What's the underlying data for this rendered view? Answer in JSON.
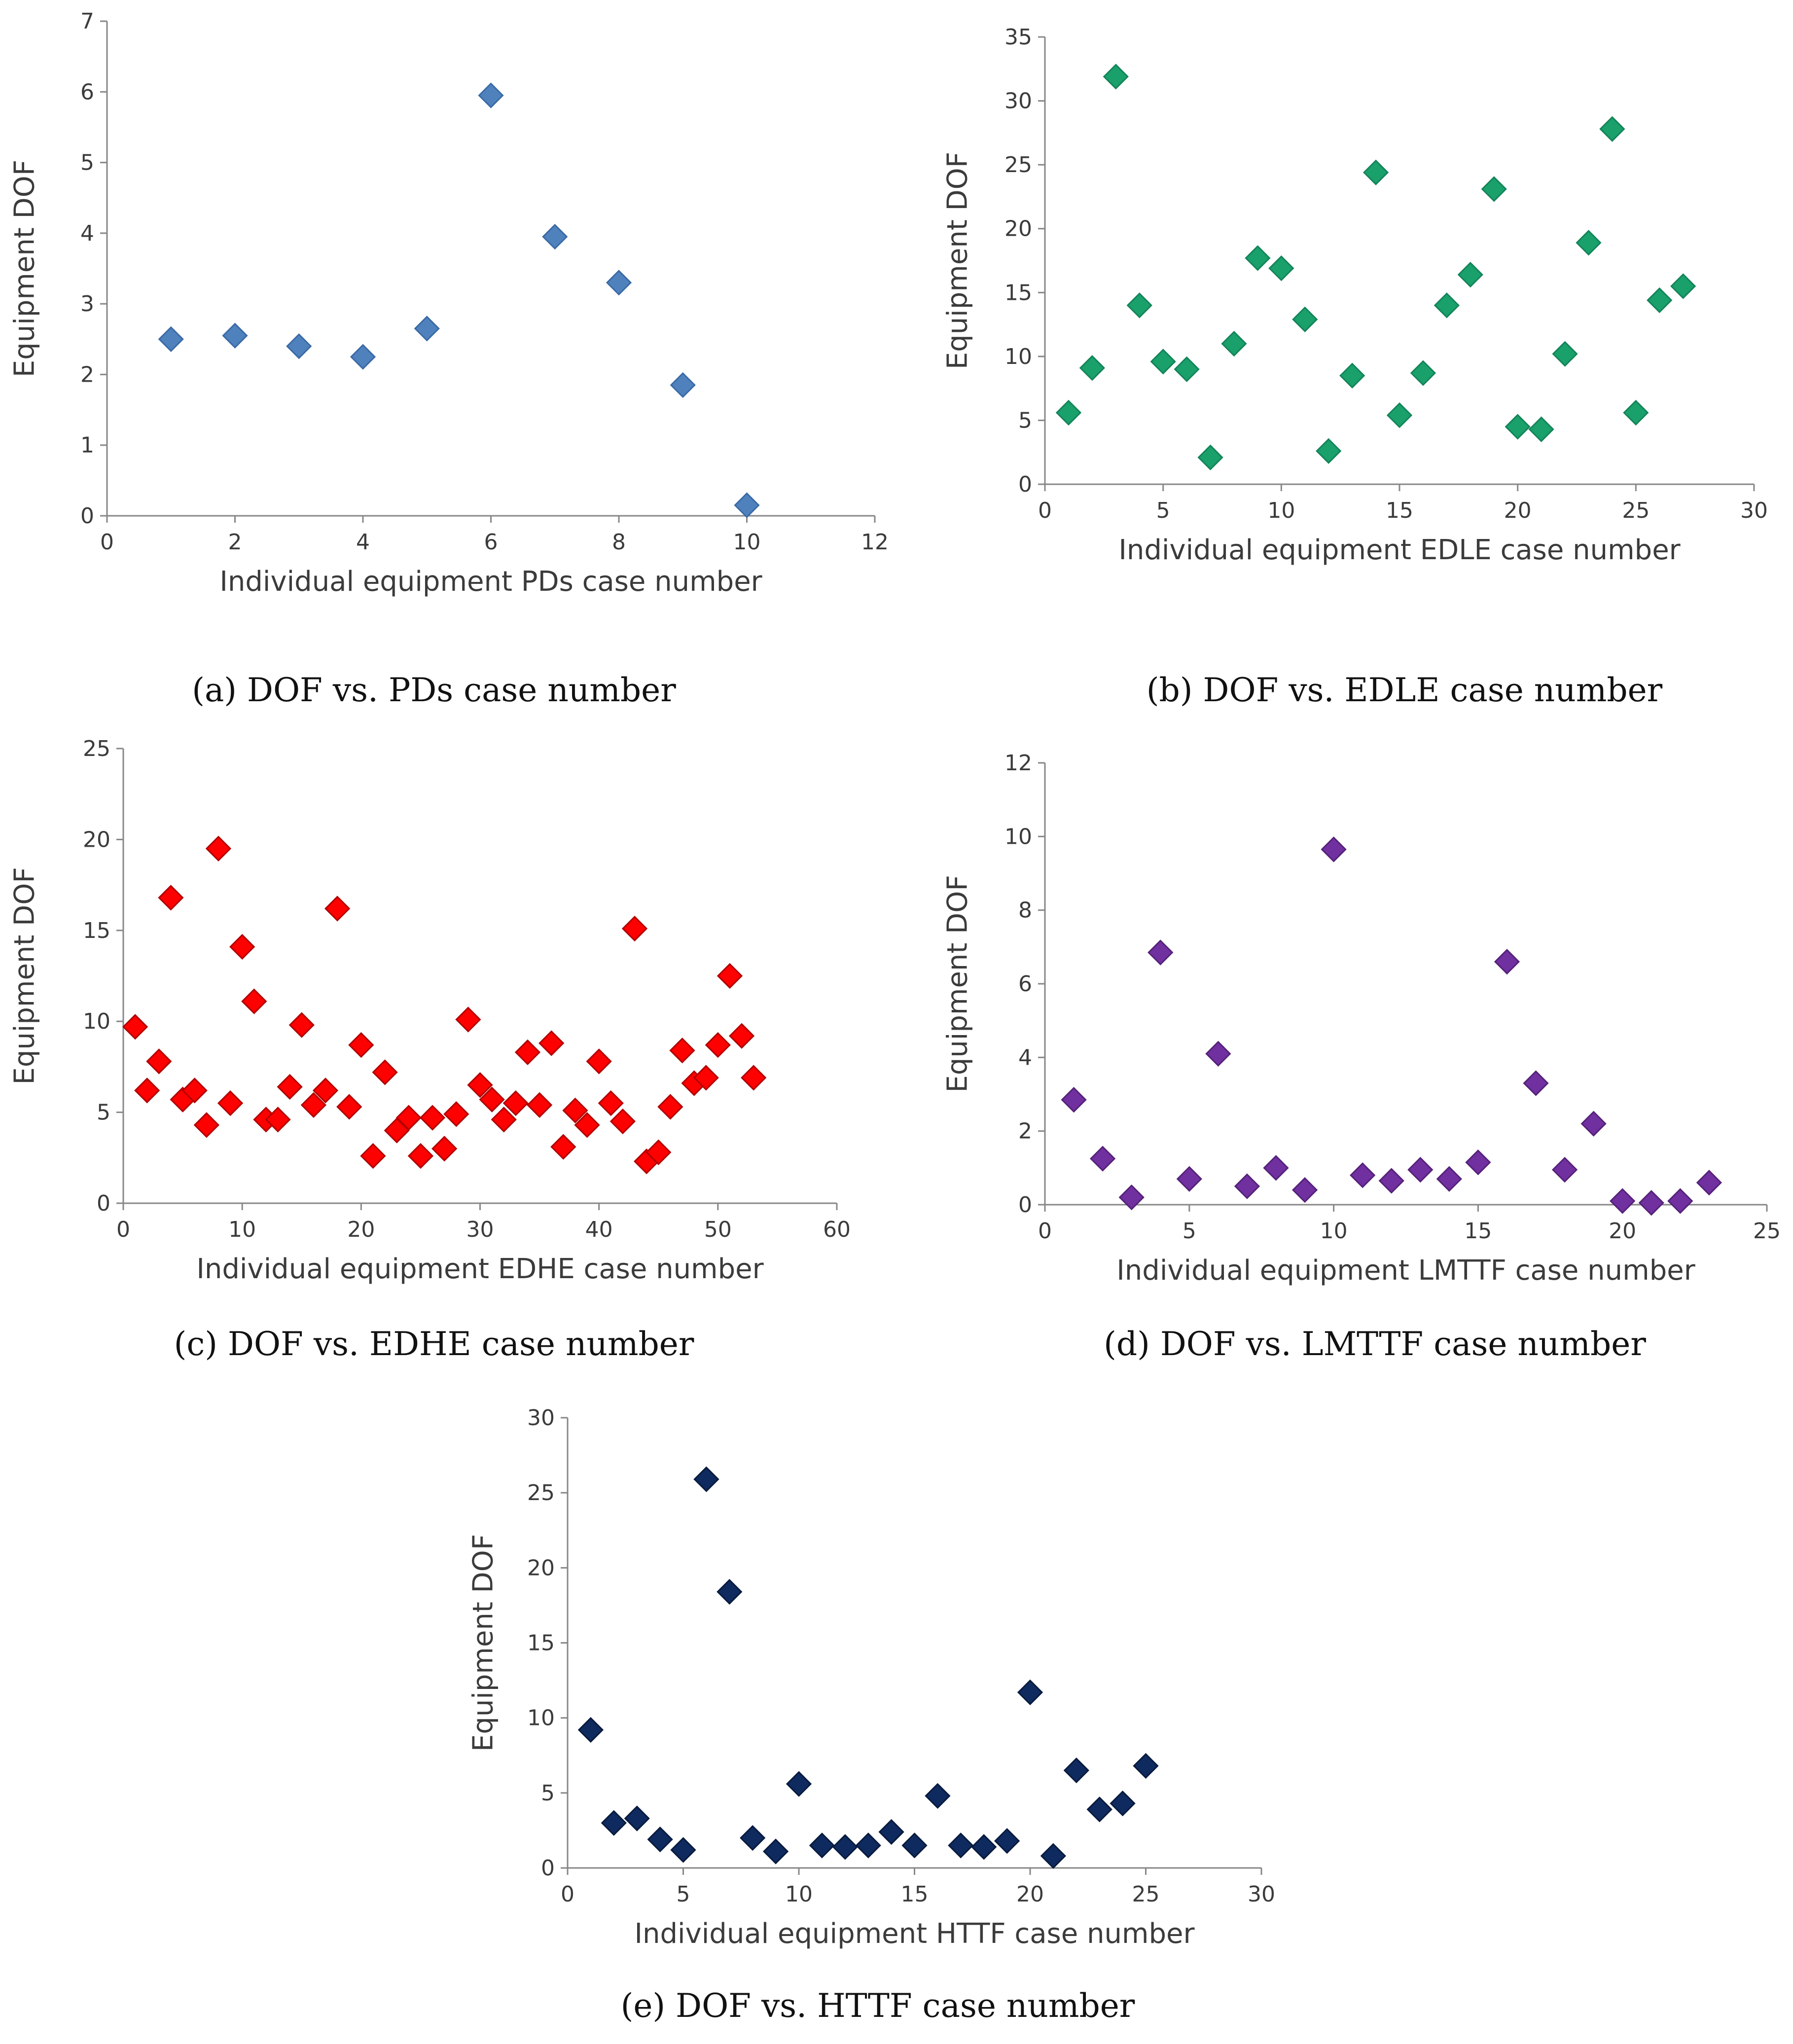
{
  "chart_data": [
    {
      "type": "scatter",
      "caption": "(a) DOF vs. PDs case number",
      "xlabel": "Individual equipment PDs case number",
      "ylabel": "Equipment DOF",
      "xlim": [
        0,
        12
      ],
      "ylim": [
        0,
        7
      ],
      "xticks": [
        0,
        2,
        4,
        6,
        8,
        10,
        12
      ],
      "yticks": [
        0,
        1,
        2,
        3,
        4,
        5,
        6,
        7
      ],
      "marker_color": "#4f81bd",
      "marker_edge": "#3a6aa6",
      "x": [
        1,
        2,
        3,
        4,
        5,
        6,
        7,
        8,
        9,
        10
      ],
      "y": [
        2.5,
        2.55,
        2.4,
        2.25,
        2.65,
        5.95,
        3.95,
        3.3,
        1.85,
        0.15
      ]
    },
    {
      "type": "scatter",
      "caption": "(b) DOF vs. EDLE case number",
      "xlabel": "Individual equipment EDLE case number",
      "ylabel": "Equipment DOF",
      "xlim": [
        0,
        30
      ],
      "ylim": [
        0,
        35
      ],
      "xticks": [
        0,
        5,
        10,
        15,
        20,
        25,
        30
      ],
      "yticks": [
        0,
        5,
        10,
        15,
        20,
        25,
        30,
        35
      ],
      "marker_color": "#1aa06a",
      "marker_edge": "#13845a",
      "x": [
        1,
        2,
        3,
        4,
        5,
        6,
        7,
        8,
        9,
        10,
        11,
        12,
        13,
        14,
        15,
        16,
        17,
        18,
        19,
        20,
        21,
        22,
        23,
        24,
        25,
        26,
        27
      ],
      "y": [
        5.6,
        9.1,
        31.9,
        14.0,
        9.6,
        9.0,
        2.1,
        11.0,
        17.7,
        16.9,
        12.9,
        2.6,
        8.5,
        24.4,
        5.4,
        8.7,
        14.0,
        16.4,
        23.1,
        4.5,
        4.3,
        10.2,
        18.9,
        27.8,
        5.6,
        14.4,
        15.5
      ]
    },
    {
      "type": "scatter",
      "caption": "(c) DOF vs. EDHE case number",
      "xlabel": "Individual equipment EDHE case number",
      "ylabel": "Equipment DOF",
      "xlim": [
        0,
        60
      ],
      "ylim": [
        0,
        25
      ],
      "xticks": [
        0,
        10,
        20,
        30,
        40,
        50,
        60
      ],
      "yticks": [
        0,
        5,
        10,
        15,
        20,
        25
      ],
      "marker_color": "#ff0000",
      "marker_edge": "#b00000",
      "x": [
        1,
        2,
        3,
        4,
        5,
        6,
        7,
        8,
        9,
        10,
        11,
        12,
        13,
        14,
        15,
        16,
        17,
        18,
        19,
        20,
        21,
        22,
        23,
        24,
        25,
        26,
        27,
        28,
        29,
        30,
        31,
        32,
        33,
        34,
        35,
        36,
        37,
        38,
        39,
        40,
        41,
        42,
        43,
        44,
        45,
        46,
        47,
        48,
        49,
        50,
        51,
        52,
        53
      ],
      "y": [
        9.7,
        6.2,
        7.8,
        16.8,
        5.7,
        6.2,
        4.3,
        19.5,
        5.5,
        14.1,
        11.1,
        4.6,
        4.6,
        6.4,
        9.8,
        5.4,
        6.2,
        16.2,
        5.3,
        8.7,
        2.6,
        7.2,
        4.0,
        4.7,
        2.6,
        4.7,
        3.0,
        4.9,
        10.1,
        6.5,
        5.7,
        4.6,
        5.5,
        8.3,
        5.4,
        8.8,
        3.1,
        5.1,
        4.3,
        7.8,
        5.5,
        4.5,
        15.1,
        2.3,
        2.8,
        5.3,
        8.4,
        6.6,
        6.9,
        8.7,
        12.5,
        9.2,
        6.9
      ]
    },
    {
      "type": "scatter",
      "caption": "(d) DOF vs. LMTTF case number",
      "xlabel": "Individual equipment LMTTF case number",
      "ylabel": "Equipment DOF",
      "xlim": [
        0,
        25
      ],
      "ylim": [
        0,
        12
      ],
      "xticks": [
        0,
        5,
        10,
        15,
        20,
        25
      ],
      "yticks": [
        0,
        2,
        4,
        6,
        8,
        10,
        12
      ],
      "marker_color": "#7030a0",
      "marker_edge": "#552178",
      "x": [
        1,
        2,
        3,
        4,
        5,
        6,
        7,
        8,
        9,
        10,
        11,
        12,
        13,
        14,
        15,
        16,
        17,
        18,
        19,
        20,
        21,
        22,
        23
      ],
      "y": [
        2.85,
        1.25,
        0.2,
        6.85,
        0.7,
        4.1,
        0.5,
        1.0,
        0.4,
        9.65,
        0.8,
        0.65,
        0.95,
        0.7,
        1.15,
        6.6,
        3.3,
        0.95,
        2.2,
        0.1,
        0.05,
        0.1,
        0.6
      ]
    },
    {
      "type": "scatter",
      "caption": "(e) DOF vs. HTTF case number",
      "xlabel": "Individual equipment HTTF case number",
      "ylabel": "Equipment DOF",
      "xlim": [
        0,
        30
      ],
      "ylim": [
        0,
        30
      ],
      "xticks": [
        0,
        5,
        10,
        15,
        20,
        25,
        30
      ],
      "yticks": [
        0,
        5,
        10,
        15,
        20,
        25,
        30
      ],
      "marker_color": "#0f2a5e",
      "marker_edge": "#081a3d",
      "x": [
        1,
        2,
        3,
        4,
        5,
        6,
        7,
        8,
        9,
        10,
        11,
        12,
        13,
        14,
        15,
        16,
        17,
        18,
        19,
        20,
        21,
        22,
        23,
        24,
        25
      ],
      "y": [
        9.2,
        3.0,
        3.3,
        1.9,
        1.2,
        25.9,
        18.4,
        2.0,
        1.1,
        5.6,
        1.5,
        1.4,
        1.5,
        2.4,
        1.5,
        4.8,
        1.5,
        1.4,
        1.8,
        11.7,
        0.8,
        6.5,
        3.9,
        4.3,
        6.8
      ]
    }
  ]
}
